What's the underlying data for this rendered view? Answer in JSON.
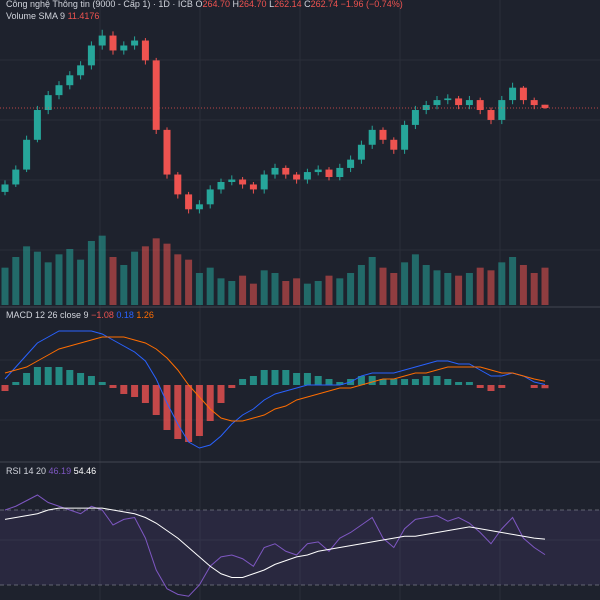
{
  "chart_data": [
    {
      "type": "candlestick",
      "title": "Công nghệ Thông tin (9000 - Cấp 1) · 1D · ICB",
      "ohlc_header": [
        {
          "label": "O",
          "value": "264.70"
        },
        {
          "label": "H",
          "value": "264.70"
        },
        {
          "label": "L",
          "value": "262.14"
        },
        {
          "label": "C",
          "value": "262.74"
        }
      ],
      "change": "−1.96 (−0.74%)",
      "up_color": "#26a69a",
      "down_color": "#ef5350",
      "ylim": [
        192,
        328
      ],
      "last_price_line": true,
      "candles": [
        [
          212,
          219,
          210,
          216.5
        ],
        [
          216.5,
          228,
          215,
          225.5
        ],
        [
          225.5,
          246,
          224,
          243.5
        ],
        [
          243.5,
          264,
          242,
          261.5
        ],
        [
          261.5,
          273,
          259,
          270.5
        ],
        [
          270.5,
          279,
          268,
          276.5
        ],
        [
          276.5,
          285,
          274,
          282.5
        ],
        [
          282.5,
          291,
          280,
          288.5
        ],
        [
          288.5,
          303,
          286,
          300.5
        ],
        [
          300.5,
          310,
          298,
          306.5
        ],
        [
          306.5,
          309,
          295,
          297.5
        ],
        [
          297.5,
          303,
          295,
          300.5
        ],
        [
          300.5,
          306,
          298,
          303.5
        ],
        [
          303.5,
          305,
          289,
          291.5
        ],
        [
          291.5,
          293,
          247,
          249.5
        ],
        [
          249.5,
          251,
          220,
          222.5
        ],
        [
          222.5,
          224,
          208,
          210.5
        ],
        [
          210.5,
          212,
          199,
          201.5
        ],
        [
          201.5,
          207,
          199,
          204.5
        ],
        [
          204.5,
          216,
          202,
          213.5
        ],
        [
          213.5,
          220,
          211,
          218
        ],
        [
          218,
          222,
          216,
          219.5
        ],
        [
          219.5,
          221,
          214,
          216.5
        ],
        [
          216.5,
          218,
          211,
          213.5
        ],
        [
          213.5,
          225,
          211,
          222.5
        ],
        [
          222.5,
          229,
          220,
          226.5
        ],
        [
          226.5,
          228,
          220,
          222.5
        ],
        [
          222.5,
          224,
          217,
          219.5
        ],
        [
          219.5,
          226,
          217,
          224
        ],
        [
          224,
          228,
          222,
          225.5
        ],
        [
          225.5,
          227,
          219,
          221
        ],
        [
          221,
          229,
          219,
          226.5
        ],
        [
          226.5,
          234,
          224,
          231.5
        ],
        [
          231.5,
          243,
          229,
          240.5
        ],
        [
          240.5,
          252,
          238,
          249.5
        ],
        [
          249.5,
          251,
          241,
          243.5
        ],
        [
          243.5,
          245,
          235,
          237.5
        ],
        [
          237.5,
          255,
          235,
          252.5
        ],
        [
          252.5,
          264,
          250,
          261.5
        ],
        [
          261.5,
          267,
          259,
          264.5
        ],
        [
          264.5,
          270,
          262,
          267.5
        ],
        [
          267.5,
          271,
          265,
          268.5
        ],
        [
          268.5,
          270,
          262,
          264.5
        ],
        [
          264.5,
          270,
          262,
          267.5
        ],
        [
          267.5,
          269,
          259,
          261.5
        ],
        [
          261.5,
          263,
          253,
          255.5
        ],
        [
          255.5,
          270,
          253,
          267.5
        ],
        [
          267.5,
          278,
          265,
          275
        ],
        [
          275,
          276,
          265,
          267.5
        ],
        [
          267.5,
          269,
          262,
          264.5
        ],
        [
          264.7,
          264.7,
          262.14,
          262.74
        ]
      ]
    },
    {
      "type": "volume",
      "title": "Volume SMA 9",
      "legend_value": "11.4176",
      "ylim": [
        0,
        30
      ],
      "values": [
        14,
        18,
        22,
        20,
        16,
        19,
        21,
        17,
        24,
        26,
        18,
        15,
        20,
        22,
        25,
        23,
        19,
        17,
        12,
        14,
        10,
        9,
        11,
        8,
        13,
        12,
        9,
        10,
        8,
        9,
        11,
        10,
        12,
        15,
        18,
        14,
        12,
        16,
        19,
        15,
        13,
        12,
        11,
        12,
        14,
        13,
        16,
        18,
        15,
        12,
        14
      ]
    },
    {
      "type": "macd",
      "title": "MACD 12 26 close 9",
      "legend_values": [
        {
          "value": "−1.08",
          "color": "#ef5350"
        },
        {
          "value": "0.18",
          "color": "#2962ff"
        },
        {
          "value": "1.26",
          "color": "#ff6d00"
        }
      ],
      "ylim": [
        -25,
        25
      ],
      "histogram": {
        "up_color": "#26a69a",
        "down_color": "#ef5350",
        "values": [
          -2,
          1,
          4,
          6,
          6,
          6,
          5,
          4,
          3,
          1,
          -1,
          -3,
          -4,
          -6,
          -10,
          -15,
          -18,
          -19,
          -17,
          -12,
          -6,
          -1,
          2,
          3,
          5,
          5,
          5,
          4,
          4,
          3,
          2,
          1,
          2,
          3,
          3,
          2,
          2,
          2,
          2,
          3,
          3,
          2,
          1,
          1,
          -1,
          -2,
          -1,
          0,
          0,
          -1,
          -1.08
        ]
      },
      "series": [
        {
          "color": "#2962ff",
          "values": [
            2,
            6,
            10,
            14,
            16,
            18,
            18,
            18,
            18,
            17,
            15,
            13,
            11,
            8,
            2,
            -6,
            -13,
            -19,
            -21,
            -20,
            -17,
            -13,
            -10,
            -8,
            -5,
            -3,
            -2,
            -1,
            0,
            0,
            0,
            0,
            1,
            3,
            4,
            4,
            4,
            5,
            6,
            7,
            8,
            8,
            7,
            7,
            5,
            3,
            3,
            4,
            3,
            1,
            0.18
          ]
        },
        {
          "color": "#ff6d00",
          "values": [
            4,
            5,
            6,
            8,
            10,
            12,
            13,
            14,
            15,
            16,
            16,
            16,
            15,
            14,
            12,
            9,
            5,
            0,
            -4,
            -8,
            -11,
            -12,
            -12,
            -11,
            -10,
            -8,
            -7,
            -5,
            -4,
            -3,
            -2,
            -1,
            -1,
            0,
            1,
            2,
            2,
            3,
            4,
            4,
            5,
            6,
            6,
            6,
            6,
            5,
            4,
            4,
            3,
            2,
            1.26
          ]
        }
      ]
    },
    {
      "type": "rsi",
      "title": "RSI 14 20",
      "legend_values": [
        {
          "value": "46.19",
          "color": "#7e57c2"
        },
        {
          "value": "54.46",
          "color": "#ffffff"
        }
      ],
      "ylim": [
        22,
        94
      ],
      "bands": [
        70,
        30
      ],
      "series": [
        {
          "color": "#7e57c2",
          "values": [
            70,
            72,
            75,
            78,
            74,
            72,
            70,
            68,
            72,
            70,
            62,
            65,
            66,
            55,
            38,
            28,
            25,
            24,
            30,
            40,
            45,
            46,
            44,
            40,
            50,
            52,
            48,
            46,
            52,
            53,
            48,
            55,
            58,
            62,
            66,
            55,
            50,
            60,
            65,
            66,
            67,
            64,
            66,
            63,
            58,
            52,
            60,
            66,
            55,
            50,
            46.19
          ]
        },
        {
          "color": "#ffffff",
          "values": [
            65,
            66,
            67,
            68,
            70,
            71,
            71,
            71,
            71,
            71,
            70,
            69,
            68,
            66,
            63,
            59,
            55,
            50,
            45,
            40,
            36,
            34,
            34,
            36,
            38,
            41,
            43,
            45,
            46,
            48,
            49,
            50,
            51,
            52,
            53,
            54,
            55,
            56,
            56,
            57,
            58,
            59,
            60,
            61,
            60,
            59,
            58,
            57,
            56,
            55,
            54.46
          ]
        }
      ]
    }
  ]
}
